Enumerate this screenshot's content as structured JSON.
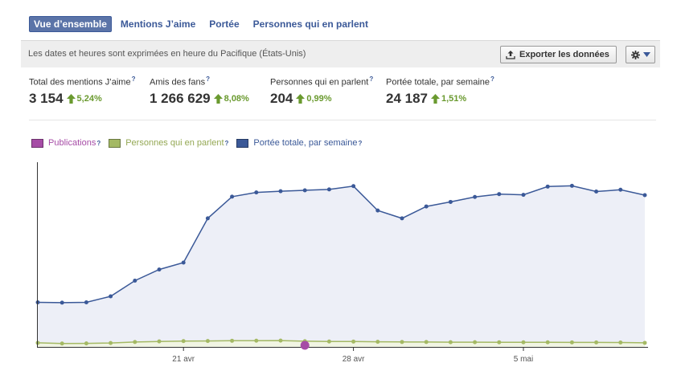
{
  "tabs": [
    {
      "label": "Vue d’ensemble",
      "active": true
    },
    {
      "label": "Mentions J’aime",
      "active": false
    },
    {
      "label": "Portée",
      "active": false
    },
    {
      "label": "Personnes qui en parlent",
      "active": false
    }
  ],
  "infobar": {
    "text": "Les dates et heures sont exprimées en heure du Pacifique (États-Unis)",
    "export_label": "Exporter les données",
    "export_icon": "upload-icon",
    "gear_icon": "gear-icon",
    "dropdown_icon": "caret-down-icon"
  },
  "stats": [
    {
      "label": "Total des mentions J’aime",
      "help": "?",
      "value": "3 154",
      "change": "5,24%"
    },
    {
      "label": "Amis des fans",
      "help": "?",
      "value": "1 266 629",
      "change": "8,08%"
    },
    {
      "label": "Personnes qui en parlent",
      "help": "?",
      "value": "204",
      "change": "0,99%"
    },
    {
      "label": "Portée totale, par semaine",
      "help": "?",
      "value": "24 187",
      "change": "1,51%"
    }
  ],
  "colors": {
    "posts": "#a64ca6",
    "talking": "#a4b964",
    "reach": "#3b5998",
    "up_arrow": "#6a9a2f",
    "link": "#3b5998"
  },
  "chart_data": {
    "type": "line",
    "series": [
      {
        "name": "Portée totale, par semaine",
        "color": "#3b5998",
        "values": [
          2960,
          2940,
          2960,
          3360,
          4400,
          5140,
          5600,
          8540,
          9980,
          10260,
          10340,
          10400,
          10460,
          10680,
          9060,
          8540,
          9330,
          9630,
          9960,
          10150,
          10100,
          10650,
          10700,
          10320,
          10440,
          10080
        ]
      },
      {
        "name": "Personnes qui en parlent",
        "color": "#a4b964",
        "values": [
          270,
          225,
          235,
          260,
          325,
          365,
          385,
          395,
          410,
          415,
          420,
          380,
          360,
          355,
          340,
          330,
          325,
          315,
          315,
          310,
          305,
          305,
          300,
          300,
          295,
          270
        ]
      },
      {
        "name": "Publications",
        "color": "#a64ca6",
        "points": [
          {
            "index": 11,
            "value": 1
          }
        ]
      }
    ],
    "x_tick_labels": [
      {
        "label": "21 avr",
        "index": 6
      },
      {
        "label": "28 avr",
        "index": 13
      },
      {
        "label": "5 mai",
        "index": 20
      }
    ],
    "ylim": [
      0,
      12800
    ],
    "grid": false,
    "legend": "top-left"
  }
}
